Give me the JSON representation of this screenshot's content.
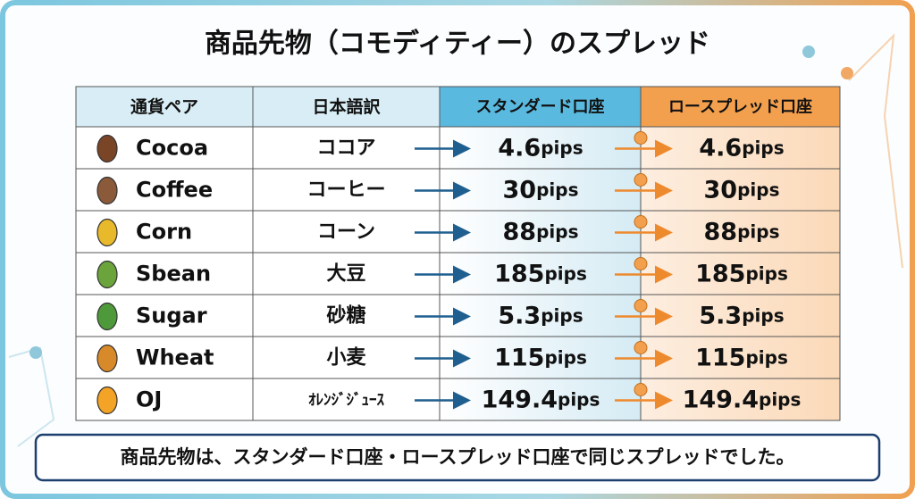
{
  "title": "商品先物（コモディティー）のスプレッド",
  "table": {
    "headers": [
      "通貨ペア",
      "日本語訳",
      "スタンダード口座",
      "ロースプレッド口座"
    ],
    "rows": [
      {
        "commodity": "Cocoa",
        "japanese": "ココア",
        "standard": {
          "value": 4.6,
          "unit": "pips"
        },
        "low_spread": {
          "value": 4.6,
          "unit": "pips"
        }
      },
      {
        "commodity": "Coffee",
        "japanese": "コーヒー",
        "standard": {
          "value": 30,
          "unit": "pips"
        },
        "low_spread": {
          "value": 30,
          "unit": "pips"
        }
      },
      {
        "commodity": "Corn",
        "japanese": "コーン",
        "standard": {
          "value": 88,
          "unit": "pips"
        },
        "low_spread": {
          "value": 88,
          "unit": "pips"
        }
      },
      {
        "commodity": "Sbean",
        "japanese": "大豆",
        "standard": {
          "value": 185,
          "unit": "pips"
        },
        "low_spread": {
          "value": 185,
          "unit": "pips"
        }
      },
      {
        "commodity": "Sugar",
        "japanese": "砂糖",
        "standard": {
          "value": 5.3,
          "unit": "pips"
        },
        "low_spread": {
          "value": 5.3,
          "unit": "pips"
        }
      },
      {
        "commodity": "Wheat",
        "japanese": "小麦",
        "standard": {
          "value": 115,
          "unit": "pips"
        },
        "low_spread": {
          "value": 115,
          "unit": "pips"
        }
      },
      {
        "commodity": "OJ",
        "japanese": "ｵﾚﾝｼﾞｼﾞｭｰｽ",
        "standard": {
          "value": 149.4,
          "unit": "pips"
        },
        "low_spread": {
          "value": 149.4,
          "unit": "pips"
        }
      }
    ]
  },
  "footer": "商品先物は、スタンダード口座・ロースプレッド口座で同じスプレッドでした。"
}
